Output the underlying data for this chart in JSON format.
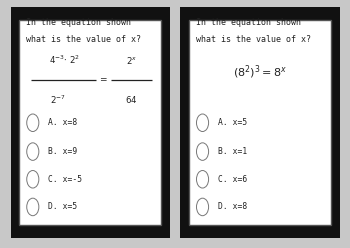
{
  "bg_color": "#c8c8c8",
  "card_bg": "#ffffff",
  "border_outer_color": "#111111",
  "border_inner_color": "#555555",
  "text_color": "#222222",
  "card1": {
    "question_line1": "In the equation shown",
    "question_line2": "what is the value of x?",
    "choices": [
      "A. x=8",
      "B. x=9",
      "C. x=-5",
      "D. x=5"
    ]
  },
  "card2": {
    "question_line1": "In the equation shown",
    "question_line2": "what is the value of x?",
    "choices": [
      "A. x=5",
      "B. x=1",
      "C. x=6",
      "D. x=8"
    ]
  }
}
